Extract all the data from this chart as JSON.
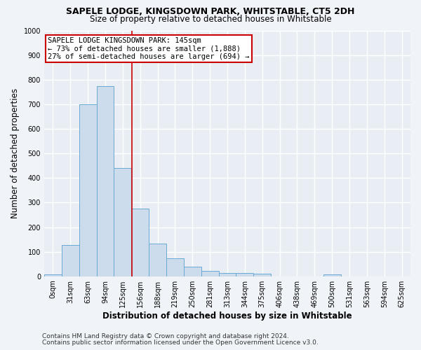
{
  "title1": "SAPELE LODGE, KINGSDOWN PARK, WHITSTABLE, CT5 2DH",
  "title2": "Size of property relative to detached houses in Whitstable",
  "xlabel": "Distribution of detached houses by size in Whitstable",
  "ylabel": "Number of detached properties",
  "bar_color": "#ccdcec",
  "bar_edge_color": "#6aaad4",
  "categories": [
    "0sqm",
    "31sqm",
    "63sqm",
    "94sqm",
    "125sqm",
    "156sqm",
    "188sqm",
    "219sqm",
    "250sqm",
    "281sqm",
    "313sqm",
    "344sqm",
    "375sqm",
    "406sqm",
    "438sqm",
    "469sqm",
    "500sqm",
    "531sqm",
    "563sqm",
    "594sqm",
    "625sqm"
  ],
  "values": [
    8,
    127,
    700,
    775,
    440,
    275,
    132,
    72,
    38,
    22,
    12,
    12,
    10,
    0,
    0,
    0,
    8,
    0,
    0,
    0,
    0
  ],
  "ylim": [
    0,
    1000
  ],
  "yticks": [
    0,
    100,
    200,
    300,
    400,
    500,
    600,
    700,
    800,
    900,
    1000
  ],
  "vline_x": 4.52,
  "vline_color": "#cc0000",
  "annotation_text": "SAPELE LODGE KINGSDOWN PARK: 145sqm\n← 73% of detached houses are smaller (1,888)\n27% of semi-detached houses are larger (694) →",
  "annotation_box_color": "#ffffff",
  "annotation_box_edge": "#cc0000",
  "footer1": "Contains HM Land Registry data © Crown copyright and database right 2024.",
  "footer2": "Contains public sector information licensed under the Open Government Licence v3.0.",
  "background_color": "#f0f4f8",
  "plot_bg_color": "#e8eef4",
  "grid_color": "#ffffff",
  "title_fontsize": 9,
  "subtitle_fontsize": 8.5,
  "tick_fontsize": 7,
  "ylabel_fontsize": 8.5,
  "xlabel_fontsize": 8.5,
  "footer_fontsize": 6.5
}
